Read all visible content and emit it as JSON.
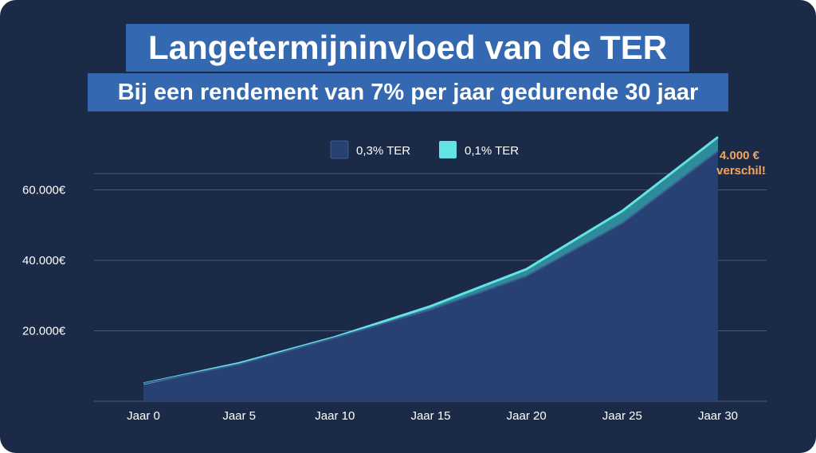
{
  "colors": {
    "background": "#1b2a47",
    "banner": "#3468b0",
    "series_low": "#274272",
    "series_high": "#64e3e6",
    "annotation": "#f5a45a",
    "gridline": "#4a5a78"
  },
  "chart_data": {
    "type": "area",
    "title": "Langetermijninvloed van de TER",
    "subtitle": "Bij een rendement van 7% per jaar gedurende 30 jaar",
    "categories": [
      "Jaar 0",
      "Jaar 5",
      "Jaar 10",
      "Jaar 15",
      "Jaar 20",
      "Jaar 25",
      "Jaar 30"
    ],
    "series": [
      {
        "name": "0,3% TER",
        "color": "#274272",
        "values": [
          5000,
          10500,
          18000,
          26000,
          35500,
          50500,
          71000
        ]
      },
      {
        "name": "0,1% TER",
        "color": "#64e3e6",
        "values": [
          5000,
          10800,
          18200,
          27000,
          37500,
          54000,
          75000
        ]
      }
    ],
    "y_ticks": [
      {
        "value": 20000,
        "label": "20.000€"
      },
      {
        "value": 40000,
        "label": "40.000€"
      },
      {
        "value": 60000,
        "label": "60.000€"
      }
    ],
    "ylim": [
      0,
      80000
    ],
    "grid": true,
    "legend_position": "top-center",
    "annotation": {
      "line1": "4.000 €",
      "line2": "verschil!"
    }
  }
}
